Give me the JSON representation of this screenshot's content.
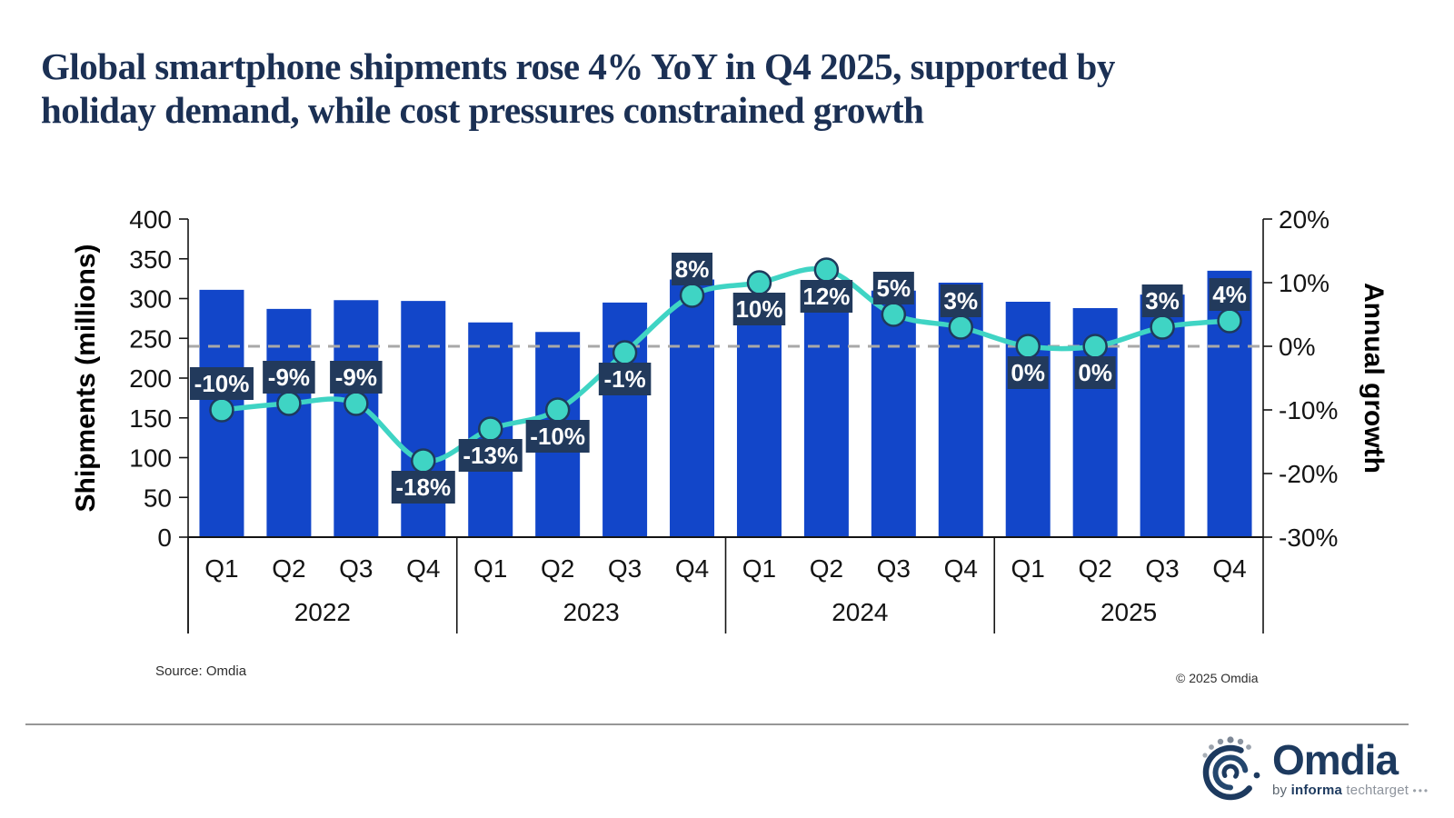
{
  "header": {
    "title_line1": "Global smartphone shipments rose 4% YoY in Q4 2025, supported by",
    "title_line2": "holiday demand, while cost pressures constrained growth"
  },
  "footer": {
    "source": "Source: Omdia",
    "copyright": "© 2025 Omdia"
  },
  "logo": {
    "wordmark": "Omdia",
    "byline_by": "by",
    "byline_informa": "informa",
    "byline_techtarget": "techtarget",
    "byline_dots": "•••"
  },
  "chart_data": {
    "type": "bar+line combo",
    "categories": [
      "Q1",
      "Q2",
      "Q3",
      "Q4",
      "Q1",
      "Q2",
      "Q3",
      "Q4",
      "Q1",
      "Q2",
      "Q3",
      "Q4",
      "Q1",
      "Q2",
      "Q3",
      "Q4"
    ],
    "groups": [
      {
        "label": "2022",
        "span": 4
      },
      {
        "label": "2023",
        "span": 4
      },
      {
        "label": "2024",
        "span": 4
      },
      {
        "label": "2025",
        "span": 4
      }
    ],
    "series": [
      {
        "name": "Shipments (millions)",
        "type": "bar",
        "color": "#1246C9",
        "values": [
          311,
          287,
          298,
          297,
          270,
          258,
          295,
          324,
          297,
          289,
          310,
          320,
          296,
          288,
          305,
          335
        ]
      },
      {
        "name": "Annual growth",
        "type": "line",
        "color": "#3FD4C4",
        "marker_stroke": "#1E3A5C",
        "values": [
          -10,
          -9,
          -9,
          -18,
          -13,
          -10,
          -1,
          8,
          10,
          12,
          5,
          3,
          0,
          0,
          3,
          4
        ],
        "labels": [
          "-10%",
          "-9%",
          "-9%",
          "-18%",
          "-13%",
          "-10%",
          "-1%",
          "8%",
          "10%",
          "12%",
          "5%",
          "3%",
          "0%",
          "0%",
          "3%",
          "4%"
        ],
        "label_positions": [
          "above",
          "above",
          "above",
          "below",
          "below",
          "below",
          "below",
          "above",
          "below",
          "below",
          "above",
          "above",
          "below",
          "below",
          "above",
          "above"
        ],
        "label_box_color": "#223A5C"
      }
    ],
    "left_axis": {
      "title": "Shipments (millions)",
      "ticks": [
        "400",
        "350",
        "300",
        "250",
        "200",
        "150",
        "100",
        "50",
        "0"
      ],
      "min": 0,
      "max": 400
    },
    "right_axis": {
      "title": "Annual growth",
      "ticks": [
        "20%",
        "10%",
        "0%",
        "-10%",
        "-20%",
        "-30%"
      ],
      "min": -30,
      "max": 20
    },
    "zero_line": {
      "value": 0,
      "style": "dashed",
      "color": "#A8A8A8"
    },
    "grid": false,
    "legend": "none"
  }
}
